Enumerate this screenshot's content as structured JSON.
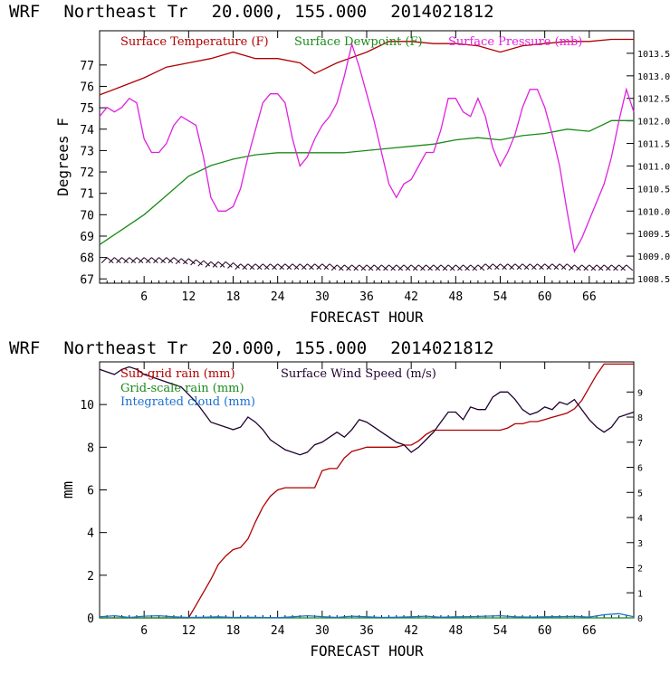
{
  "chart_data": [
    {
      "type": "line",
      "header": {
        "model": "WRF",
        "location": "Northeast Tr",
        "coords": "20.000, 155.000",
        "run": "2014021812"
      },
      "xlabel": "FORECAST HOUR",
      "ylabel": "Degrees F",
      "xlim": [
        0,
        72
      ],
      "x_ticks": [
        6,
        12,
        18,
        24,
        30,
        36,
        42,
        48,
        54,
        60,
        66
      ],
      "ylim": [
        66.8,
        78.6
      ],
      "y_ticks": [
        67,
        68,
        69,
        70,
        71,
        72,
        73,
        74,
        75,
        76,
        77
      ],
      "y2lim": [
        1008.4,
        1014.0
      ],
      "y2_ticks": [
        "1008.5",
        "1009.0",
        "1009.5",
        "1010.0",
        "1010.5",
        "1011.0",
        "1011.5",
        "1012.0",
        "1012.5",
        "1013.0",
        "1013.5"
      ],
      "legend": [
        {
          "label": "Surface Temperature (F)",
          "color": "#b00000"
        },
        {
          "label": "Surface Dewpoint (F)",
          "color": "#1a8a1a"
        },
        {
          "label": "Surface Pressure (mb)",
          "color": "#e020e0"
        }
      ],
      "series": [
        {
          "name": "Surface Temperature (F)",
          "axis": "left",
          "color": "#b00000",
          "x": [
            0,
            3,
            6,
            9,
            12,
            15,
            18,
            21,
            24,
            27,
            29,
            32,
            36,
            39,
            42,
            45,
            48,
            51,
            54,
            57,
            60,
            63,
            66,
            69,
            72
          ],
          "y": [
            75.6,
            76.0,
            76.4,
            76.9,
            77.1,
            77.3,
            77.6,
            77.3,
            77.3,
            77.1,
            76.6,
            77.1,
            77.6,
            78.1,
            78.1,
            78.0,
            78.0,
            77.9,
            77.6,
            77.9,
            78.0,
            78.1,
            78.1,
            78.2,
            78.2
          ]
        },
        {
          "name": "Surface Dewpoint (F)",
          "axis": "left",
          "color": "#1a8a1a",
          "x": [
            0,
            3,
            6,
            9,
            12,
            15,
            18,
            21,
            24,
            27,
            30,
            33,
            36,
            39,
            42,
            45,
            48,
            51,
            54,
            57,
            60,
            63,
            66,
            69,
            72
          ],
          "y": [
            68.6,
            69.3,
            70.0,
            70.9,
            71.8,
            72.3,
            72.6,
            72.8,
            72.9,
            72.9,
            72.9,
            72.9,
            73.0,
            73.1,
            73.2,
            73.3,
            73.5,
            73.6,
            73.5,
            73.7,
            73.8,
            74.0,
            73.9,
            74.4,
            74.4
          ]
        },
        {
          "name": "Surface Pressure (mb)",
          "axis": "right",
          "color": "#e020e0",
          "x": [
            0,
            1,
            2,
            3,
            4,
            5,
            6,
            7,
            8,
            9,
            10,
            11,
            12,
            13,
            14,
            15,
            16,
            17,
            18,
            19,
            20,
            21,
            22,
            23,
            24,
            25,
            26,
            27,
            28,
            29,
            30,
            31,
            32,
            33,
            34,
            35,
            36,
            37,
            38,
            39,
            40,
            41,
            42,
            43,
            44,
            45,
            46,
            47,
            48,
            49,
            50,
            51,
            52,
            53,
            54,
            55,
            56,
            57,
            58,
            59,
            60,
            61,
            62,
            63,
            64,
            65,
            66,
            67,
            68,
            69,
            70,
            71,
            72
          ],
          "y": [
            1012.1,
            1012.3,
            1012.2,
            1012.3,
            1012.5,
            1012.4,
            1011.6,
            1011.3,
            1011.3,
            1011.5,
            1011.9,
            1012.1,
            1012.0,
            1011.9,
            1011.2,
            1010.3,
            1010.0,
            1010.0,
            1010.1,
            1010.5,
            1011.2,
            1011.8,
            1012.4,
            1012.6,
            1012.6,
            1012.4,
            1011.6,
            1011.0,
            1011.2,
            1011.6,
            1011.9,
            1012.1,
            1012.4,
            1013.0,
            1013.7,
            1013.2,
            1012.6,
            1012.0,
            1011.3,
            1010.6,
            1010.3,
            1010.6,
            1010.7,
            1011.0,
            1011.3,
            1011.3,
            1011.8,
            1012.5,
            1012.5,
            1012.2,
            1012.1,
            1012.5,
            1012.1,
            1011.4,
            1011.0,
            1011.3,
            1011.7,
            1012.3,
            1012.7,
            1012.7,
            1012.3,
            1011.7,
            1011.0,
            1010.0,
            1009.1,
            1009.4,
            1009.8,
            1010.2,
            1010.6,
            1011.2,
            1012.0,
            1012.7,
            1012.2
          ]
        },
        {
          "name": "Wind barbs",
          "axis": "left",
          "color": "#200020",
          "x": [
            1,
            2,
            3,
            4,
            5,
            6,
            7,
            8,
            9,
            10,
            11,
            12,
            13,
            14,
            15,
            16,
            17,
            18,
            19,
            20,
            21,
            22,
            23,
            24,
            25,
            26,
            27,
            28,
            29,
            30,
            31,
            32,
            33,
            34,
            35,
            36,
            37,
            38,
            39,
            40,
            41,
            42,
            43,
            44,
            45,
            46,
            47,
            48,
            49,
            50,
            51,
            52,
            53,
            54,
            55,
            56,
            57,
            58,
            59,
            60,
            61,
            62,
            63,
            64,
            65,
            66,
            67,
            68,
            69,
            70,
            71
          ],
          "y": [
            68.0,
            68.0,
            68.0,
            68.0,
            68.0,
            68.0,
            68.0,
            68.0,
            68.0,
            68.0,
            67.95,
            67.95,
            67.9,
            67.85,
            67.8,
            67.8,
            67.8,
            67.75,
            67.7,
            67.7,
            67.7,
            67.7,
            67.7,
            67.7,
            67.7,
            67.7,
            67.7,
            67.7,
            67.7,
            67.7,
            67.7,
            67.65,
            67.65,
            67.65,
            67.65,
            67.65,
            67.65,
            67.65,
            67.65,
            67.65,
            67.65,
            67.65,
            67.65,
            67.65,
            67.65,
            67.65,
            67.65,
            67.65,
            67.65,
            67.65,
            67.65,
            67.7,
            67.7,
            67.7,
            67.7,
            67.7,
            67.7,
            67.7,
            67.7,
            67.7,
            67.7,
            67.7,
            67.7,
            67.65,
            67.65,
            67.65,
            67.65,
            67.65,
            67.65,
            67.65,
            67.65
          ]
        }
      ]
    },
    {
      "type": "line",
      "header": {
        "model": "WRF",
        "location": "Northeast Tr",
        "coords": "20.000, 155.000",
        "run": "2014021812"
      },
      "xlabel": "FORECAST HOUR",
      "ylabel": "mm",
      "xlim": [
        0,
        72
      ],
      "x_ticks": [
        6,
        12,
        18,
        24,
        30,
        36,
        42,
        48,
        54,
        60,
        66
      ],
      "ylim": [
        0,
        12
      ],
      "y_ticks": [
        0,
        2,
        4,
        6,
        8,
        10
      ],
      "y2lim": [
        0,
        10.2
      ],
      "y2_ticks": [
        0,
        1,
        2,
        3,
        4,
        5,
        6,
        7,
        8,
        9
      ],
      "legend": [
        {
          "label": "Sub-grid rain (mm)",
          "color": "#b00000"
        },
        {
          "label": "Surface Wind Speed (m/s)",
          "color": "#200030"
        },
        {
          "label": "Grid-scale rain (mm)",
          "color": "#1a8a1a"
        },
        {
          "label": "Integrated cloud (mm)",
          "color": "#1a6fd0"
        }
      ],
      "series": [
        {
          "name": "Sub-grid rain (mm)",
          "axis": "left",
          "color": "#b00000",
          "x": [
            0,
            12,
            13,
            14,
            15,
            16,
            17,
            18,
            19,
            20,
            21,
            22,
            23,
            24,
            25,
            26,
            27,
            28,
            29,
            30,
            31,
            32,
            33,
            34,
            35,
            36,
            37,
            38,
            39,
            40,
            41,
            42,
            43,
            44,
            45,
            46,
            47,
            48,
            54,
            55,
            56,
            57,
            58,
            59,
            60,
            61,
            62,
            63,
            64,
            65,
            66,
            67,
            68,
            72
          ],
          "y": [
            0,
            0,
            0.6,
            1.2,
            1.8,
            2.5,
            2.9,
            3.2,
            3.3,
            3.7,
            4.5,
            5.2,
            5.7,
            6.0,
            6.1,
            6.1,
            6.1,
            6.1,
            6.1,
            6.9,
            7.0,
            7.0,
            7.5,
            7.8,
            7.9,
            8.0,
            8.0,
            8.0,
            8.0,
            8.0,
            8.1,
            8.1,
            8.3,
            8.6,
            8.8,
            8.8,
            8.8,
            8.8,
            8.8,
            8.9,
            9.1,
            9.1,
            9.2,
            9.2,
            9.3,
            9.4,
            9.5,
            9.6,
            9.8,
            10.2,
            10.8,
            11.4,
            11.9,
            11.9
          ]
        },
        {
          "name": "Surface Wind Speed (m/s)",
          "axis": "right",
          "color": "#200030",
          "x": [
            0,
            1,
            2,
            3,
            4,
            5,
            6,
            7,
            8,
            9,
            10,
            11,
            12,
            13,
            14,
            15,
            16,
            17,
            18,
            19,
            20,
            21,
            22,
            23,
            24,
            25,
            26,
            27,
            28,
            29,
            30,
            31,
            32,
            33,
            34,
            35,
            36,
            37,
            38,
            39,
            40,
            41,
            42,
            43,
            44,
            45,
            46,
            47,
            48,
            49,
            50,
            51,
            52,
            53,
            54,
            55,
            56,
            57,
            58,
            59,
            60,
            61,
            62,
            63,
            64,
            65,
            66,
            67,
            68,
            69,
            70,
            71,
            72
          ],
          "y": [
            9.9,
            9.8,
            9.7,
            9.9,
            10.0,
            9.9,
            9.7,
            9.6,
            9.5,
            9.4,
            9.3,
            9.2,
            8.9,
            8.6,
            8.2,
            7.8,
            7.7,
            7.6,
            7.5,
            7.6,
            8.0,
            7.8,
            7.5,
            7.1,
            6.9,
            6.7,
            6.6,
            6.5,
            6.6,
            6.9,
            7.0,
            7.2,
            7.4,
            7.2,
            7.5,
            7.9,
            7.8,
            7.6,
            7.4,
            7.2,
            7.0,
            6.9,
            6.6,
            6.8,
            7.1,
            7.4,
            7.8,
            8.2,
            8.2,
            7.9,
            8.4,
            8.3,
            8.3,
            8.8,
            9.0,
            9.0,
            8.7,
            8.3,
            8.1,
            8.2,
            8.4,
            8.3,
            8.6,
            8.5,
            8.7,
            8.3,
            7.9,
            7.6,
            7.4,
            7.6,
            8.0,
            8.1,
            8.2
          ]
        },
        {
          "name": "Grid-scale rain (mm)",
          "axis": "left",
          "color": "#1a8a1a",
          "x": [
            0,
            72
          ],
          "y": [
            0,
            0
          ]
        },
        {
          "name": "Integrated cloud (mm)",
          "axis": "left",
          "color": "#1a6fd0",
          "x": [
            0,
            2,
            4,
            6,
            8,
            10,
            12,
            14,
            16,
            18,
            20,
            22,
            24,
            26,
            28,
            30,
            32,
            34,
            36,
            38,
            40,
            42,
            44,
            46,
            48,
            50,
            52,
            54,
            56,
            58,
            60,
            62,
            64,
            66,
            68,
            70,
            72
          ],
          "y": [
            0.05,
            0.1,
            0.02,
            0.08,
            0.1,
            0.05,
            0.02,
            0.03,
            0.05,
            0.02,
            0.03,
            0.02,
            0.01,
            0.05,
            0.1,
            0.06,
            0.02,
            0.08,
            0.05,
            0.02,
            0.03,
            0.05,
            0.08,
            0.03,
            0.05,
            0.06,
            0.08,
            0.1,
            0.05,
            0.04,
            0.05,
            0.06,
            0.07,
            0.04,
            0.15,
            0.2,
            0.05
          ]
        }
      ]
    }
  ]
}
